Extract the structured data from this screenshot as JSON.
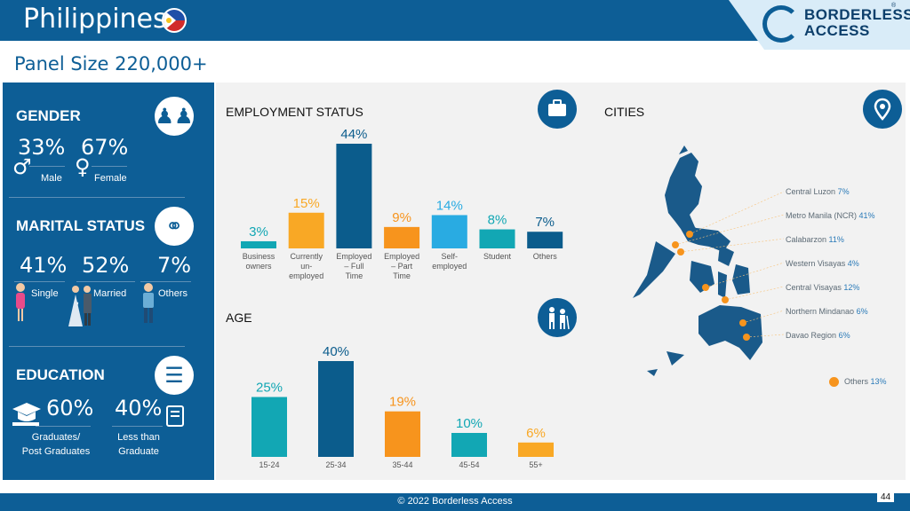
{
  "header": {
    "title": "Philippines",
    "subtitle": "Panel Size 220,000+",
    "logo_line1": "BORDERLESS",
    "logo_line2": "ACCESS",
    "logo_reg": "®"
  },
  "gender": {
    "title": "GENDER",
    "male_pct": "33%",
    "female_pct": "67%",
    "male_label": "Male",
    "female_label": "Female",
    "male_symbol": "♂",
    "female_symbol": "♀"
  },
  "marital": {
    "title": "MARITAL STATUS",
    "single_pct": "41%",
    "married_pct": "52%",
    "others_pct": "7%",
    "single_label": "Single",
    "married_label": "Married",
    "others_label": "Others",
    "married_mark": ","
  },
  "education": {
    "title": "EDUCATION",
    "grad_pct": "60%",
    "less_pct": "40%",
    "grad_label_1": "Graduates/",
    "grad_label_2": "Post Graduates",
    "less_label_1": "Less than",
    "less_label_2": "Graduate"
  },
  "icons": {
    "gender": "people-icon",
    "marital": "rings-icon",
    "education": "books-icon",
    "employment": "briefcase-icon",
    "age": "elderly-people-icon",
    "cities": "location-pin-icon",
    "graduate": "graduation-cap-icon",
    "book": "book-icon"
  },
  "colors": {
    "brand_blue": "#0d5e96",
    "teal": "#12a7b4",
    "orange": "#f7941d",
    "yellow": "#f9a825",
    "sky": "#29abe2",
    "dark_teal": "#0b5c8c",
    "city_dot": "#f7941d"
  },
  "chart_data": [
    {
      "type": "bar",
      "title": "EMPLOYMENT STATUS",
      "categories": [
        [
          "Business",
          "owners"
        ],
        [
          "Currently",
          "un-",
          "employed"
        ],
        [
          "Employed",
          "– Full",
          "Time"
        ],
        [
          "Employed",
          "– Part",
          "Time"
        ],
        [
          "Self-",
          "employed"
        ],
        [
          "Student"
        ],
        [
          "Others"
        ]
      ],
      "values": [
        3,
        15,
        44,
        9,
        14,
        8,
        7
      ],
      "value_labels": [
        "3%",
        "15%",
        "44%",
        "9%",
        "14%",
        "8%",
        "7%"
      ],
      "colors": [
        "#12a7b4",
        "#f9a825",
        "#0b5c8c",
        "#f7941d",
        "#29abe2",
        "#12a7b4",
        "#0b5c8c"
      ],
      "label_colors": [
        "#12a7b4",
        "#f9a825",
        "#0b5c8c",
        "#f7941d",
        "#29abe2",
        "#12a7b4",
        "#0b5c8c"
      ],
      "ylim": [
        0,
        44
      ]
    },
    {
      "type": "bar",
      "title": "AGE",
      "categories": [
        [
          "15-24"
        ],
        [
          "25-34"
        ],
        [
          "35-44"
        ],
        [
          "45-54"
        ],
        [
          "55+"
        ]
      ],
      "values": [
        25,
        40,
        19,
        10,
        6
      ],
      "value_labels": [
        "25%",
        "40%",
        "19%",
        "10%",
        "6%"
      ],
      "colors": [
        "#12a7b4",
        "#0b5c8c",
        "#f7941d",
        "#12a7b4",
        "#f9a825"
      ],
      "label_colors": [
        "#12a7b4",
        "#0b5c8c",
        "#f7941d",
        "#12a7b4",
        "#f9a825"
      ],
      "ylim": [
        0,
        40
      ]
    }
  ],
  "cities": {
    "title": "CITIES",
    "items": [
      {
        "name": "Central Luzon",
        "value": "7%"
      },
      {
        "name": "Metro Manila (NCR)",
        "value": "41%"
      },
      {
        "name": "Calabarzon",
        "value": "11%"
      },
      {
        "name": "Western Visayas",
        "value": "4%"
      },
      {
        "name": "Central Visayas",
        "value": "12%"
      },
      {
        "name": "Northern Mindanao",
        "value": "6%"
      },
      {
        "name": "Davao Region",
        "value": "6%"
      }
    ],
    "others": {
      "name": "Others",
      "value": "13%"
    }
  },
  "footer": {
    "copyright": "© 2022 Borderless Access",
    "page": "44"
  }
}
